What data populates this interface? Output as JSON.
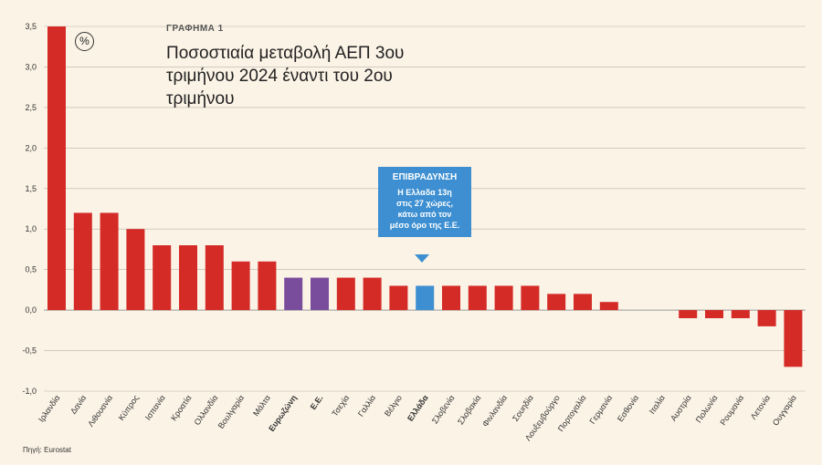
{
  "header": {
    "label": "ΓΡΑΦΗΜΑ 1",
    "title": "Ποσοστιαία μεταβολή ΑΕΠ 3ου τριμήνου 2024 έναντι του 2ου τριμήνου",
    "unit_symbol": "%"
  },
  "callout": {
    "heading": "ΕΠΙΒΡΑΔΥΝΣΗ",
    "body": "Η Ελλαδα 13η\nστις 27 χώρες,\nκάτω από τον\nμέσο όρο της Ε.Ε."
  },
  "source": "Πηγή: Eurostat",
  "colors": {
    "default": "#d42b27",
    "aggregate": "#7a4c9c",
    "greece": "#3d8fd1",
    "background": "#fbf3e6"
  },
  "chart_data": {
    "type": "bar",
    "categories": [
      "Ιρλανδία",
      "Δανία",
      "Λιθουανία",
      "Κύπρος",
      "Ισπανία",
      "Κροατία",
      "Ολλανδία",
      "Βουλγαρία",
      "Μάλτα",
      "Ευρωζώνη",
      "Ε.Ε.",
      "Τσεχία",
      "Γαλλία",
      "Βέλγιο",
      "Ελλάδα",
      "Σλοβενία",
      "Σλοβακία",
      "Φινλανδία",
      "Σουηδία",
      "Λουξεμβούργο",
      "Πορτογαλία",
      "Γερμανία",
      "Εσθονία",
      "Ιταλία",
      "Αυστρία",
      "Πολωνία",
      "Ρουμανία",
      "Λετονία",
      "Ουγγαρία"
    ],
    "values": [
      3.5,
      1.2,
      1.2,
      1.0,
      0.8,
      0.8,
      0.8,
      0.6,
      0.6,
      0.4,
      0.4,
      0.4,
      0.4,
      0.3,
      0.3,
      0.3,
      0.3,
      0.3,
      0.3,
      0.2,
      0.2,
      0.1,
      0.0,
      0.0,
      -0.1,
      -0.1,
      -0.1,
      -0.2,
      -0.7
    ],
    "highlight": {
      "Ευρωζώνη": "aggregate",
      "Ε.Ε.": "aggregate",
      "Ελλάδα": "greece"
    },
    "bold_labels": [
      "Ευρωζώνη",
      "Ε.Ε.",
      "Ελλάδα"
    ],
    "yticks": [
      "3,5",
      "3,0",
      "2,5",
      "2,0",
      "1,5",
      "1,0",
      "0,5",
      "0,0",
      "-0,5",
      "-1,0"
    ],
    "ylim": [
      -1.0,
      3.5
    ],
    "grid": true
  }
}
